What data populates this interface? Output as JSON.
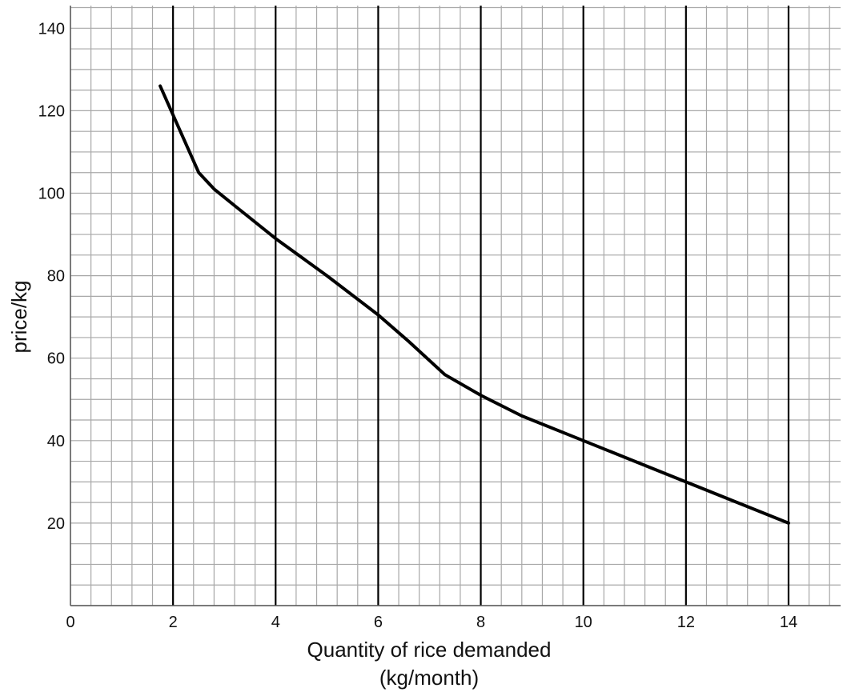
{
  "chart_data": {
    "type": "line",
    "title": "",
    "xlabel_line1": "Quantity of rice demanded",
    "xlabel_line2": "(kg/month)",
    "ylabel": "price/kg",
    "xlim": [
      0,
      15.2
    ],
    "ylim": [
      0,
      145
    ],
    "x_ticks": [
      0,
      2,
      4,
      6,
      8,
      10,
      12,
      14
    ],
    "x_tick_labels": [
      "0",
      "2",
      "4",
      "6",
      "8",
      "10",
      "12",
      "14"
    ],
    "y_ticks": [
      20,
      40,
      60,
      80,
      100,
      120,
      140
    ],
    "y_tick_labels": [
      "20",
      "40",
      "60",
      "80",
      "100",
      "120",
      "140"
    ],
    "grid": true,
    "series": [
      {
        "x": [
          1.75,
          2.0,
          2.5,
          2.8,
          3.2,
          4.0,
          5.0,
          6.0,
          6.6,
          7.3,
          8.0,
          8.8,
          10.0,
          11.0,
          12.0,
          13.0,
          14.0
        ],
        "y": [
          126,
          119,
          105,
          101,
          97,
          89,
          80,
          70.5,
          64,
          56,
          51,
          46,
          40,
          35,
          30,
          25,
          20
        ]
      }
    ]
  }
}
